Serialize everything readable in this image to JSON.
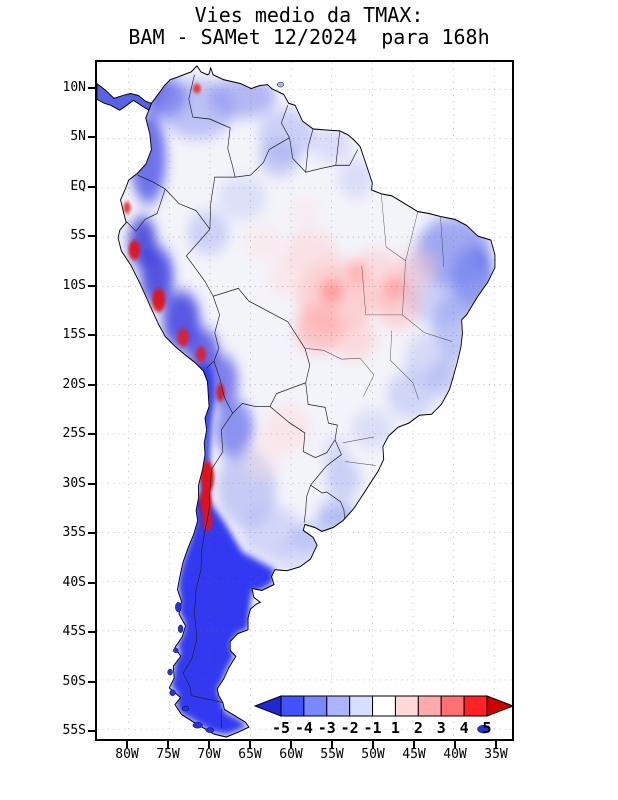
{
  "title": {
    "line1": "Vies medio da TMAX:",
    "line2": "BAM - SAMet 12/2024  para 168h"
  },
  "axes": {
    "lat_labels": [
      "10N",
      "5N",
      "EQ",
      "5S",
      "10S",
      "15S",
      "20S",
      "25S",
      "30S",
      "35S",
      "40S",
      "45S",
      "50S",
      "55S"
    ],
    "lon_labels": [
      "80W",
      "75W",
      "70W",
      "65W",
      "60W",
      "55W",
      "50W",
      "45W",
      "40W",
      "35W"
    ]
  },
  "colorbar": {
    "labels": [
      "-5",
      "-4",
      "-3",
      "-2",
      "-1",
      "1",
      "2",
      "3",
      "4",
      "5"
    ],
    "colors": [
      "#1e28d2",
      "#4152ff",
      "#7a88ff",
      "#aab4ff",
      "#d8deff",
      "#ffffff",
      "#ffd8d8",
      "#ffaaaa",
      "#ff7070",
      "#ff2222",
      "#cc0000"
    ]
  },
  "chart_data": {
    "type": "heatmap",
    "title": "Vies medio da TMAX: BAM - SAMet 12/2024 para 168h",
    "region": "South America",
    "colorbar_levels": [
      -5,
      -4,
      -3,
      -2,
      -1,
      1,
      2,
      3,
      4,
      5
    ],
    "lat_range": [
      "10N",
      "55S"
    ],
    "lon_range": [
      "80W",
      "35W"
    ],
    "legend_position": "bottom-right",
    "grid": "dotted 5-degree graticule"
  }
}
